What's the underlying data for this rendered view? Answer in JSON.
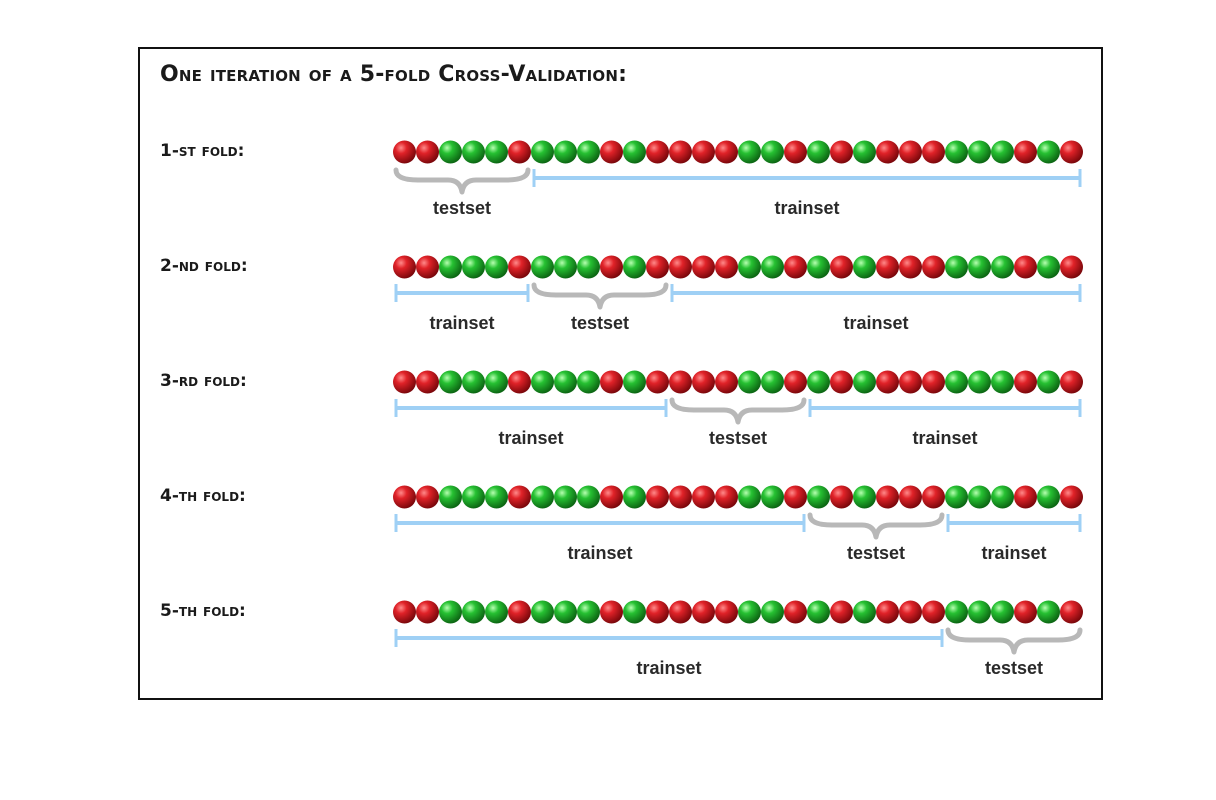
{
  "title": "One iteration of a 5-fold Cross-Validation:",
  "sample_colors": [
    "red",
    "red",
    "green",
    "green",
    "green",
    "red",
    "green",
    "green",
    "green",
    "red",
    "green",
    "red",
    "red",
    "red",
    "red",
    "green",
    "green",
    "red",
    "green",
    "red",
    "green",
    "red",
    "red",
    "red",
    "green",
    "green",
    "green",
    "red",
    "green",
    "red"
  ],
  "colors": {
    "red": "#c4141a",
    "green": "#1fae2a",
    "train_bracket": "#9fd0f5",
    "test_brace": "#b8b8b8"
  },
  "folds": [
    {
      "label": "1-st fold:",
      "segments": [
        {
          "kind": "test",
          "label": "testset",
          "start": 0,
          "end": 6
        },
        {
          "kind": "train",
          "label": "trainset",
          "start": 6,
          "end": 30
        }
      ]
    },
    {
      "label": "2-nd fold:",
      "segments": [
        {
          "kind": "train",
          "label": "trainset",
          "start": 0,
          "end": 6
        },
        {
          "kind": "test",
          "label": "testset",
          "start": 6,
          "end": 12
        },
        {
          "kind": "train",
          "label": "trainset",
          "start": 12,
          "end": 30
        }
      ]
    },
    {
      "label": "3-rd fold:",
      "segments": [
        {
          "kind": "train",
          "label": "trainset",
          "start": 0,
          "end": 12
        },
        {
          "kind": "test",
          "label": "testset",
          "start": 12,
          "end": 18
        },
        {
          "kind": "train",
          "label": "trainset",
          "start": 18,
          "end": 30
        }
      ]
    },
    {
      "label": "4-th fold:",
      "segments": [
        {
          "kind": "train",
          "label": "trainset",
          "start": 0,
          "end": 18
        },
        {
          "kind": "test",
          "label": "testset",
          "start": 18,
          "end": 24
        },
        {
          "kind": "train",
          "label": "trainset",
          "start": 24,
          "end": 30
        }
      ]
    },
    {
      "label": "5-th fold:",
      "segments": [
        {
          "kind": "train",
          "label": "trainset",
          "start": 0,
          "end": 24
        },
        {
          "kind": "test",
          "label": "testset",
          "start": 24,
          "end": 30
        }
      ]
    }
  ]
}
